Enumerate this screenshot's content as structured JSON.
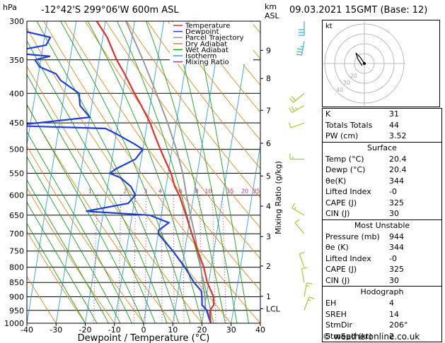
{
  "header": {
    "hpa_label": "hPa",
    "location": "-12°42'S  299°06'W  600m  ASL",
    "km_label": "km",
    "asl_label": "ASL",
    "datetime": "09.03.2021  15GMT  (Base: 12)"
  },
  "footer": {
    "credit": "© weatheronline.co.uk"
  },
  "legend": [
    {
      "label": "Temperature",
      "color": "#e0302a"
    },
    {
      "label": "Dewpoint",
      "color": "#1f3fd6"
    },
    {
      "label": "Parcel Trajectory",
      "color": "#999999"
    },
    {
      "label": "Dry Adiabat",
      "color": "#e08a1a"
    },
    {
      "label": "Wet Adiabat",
      "color": "#18a018"
    },
    {
      "label": "Isotherm",
      "color": "#2aa0e0"
    },
    {
      "label": "Mixing Ratio",
      "color": "#d0208a"
    }
  ],
  "colors": {
    "temperature": "#e0302a",
    "dewpoint": "#1f3fd6",
    "parcel": "#999999",
    "dry_adiabat": "#e08a1a",
    "wet_adiabat": "#18a018",
    "isotherm": "#2aa0e0",
    "mixing_ratio": "#d0208a",
    "wind_barb_upper": "#29b8c8",
    "wind_barb_lower": "#9ad030"
  },
  "chart_data": {
    "type": "line",
    "title": "",
    "xlabel": "Dewpoint / Temperature (°C)",
    "ylabel": "hPa",
    "secondary_ylabel": "Mixing Ratio (g/kg)",
    "xlim": [
      -40,
      40
    ],
    "ylim": [
      1000,
      300
    ],
    "x_ticks": [
      "-40",
      "-30",
      "-20",
      "-10",
      "0",
      "10",
      "20",
      "30",
      "40"
    ],
    "pressure_ticks": [
      "300",
      "350",
      "400",
      "450",
      "500",
      "550",
      "600",
      "650",
      "700",
      "750",
      "800",
      "850",
      "900",
      "950",
      "1000"
    ],
    "km_ticks": [
      {
        "label": "9",
        "p": 337
      },
      {
        "label": "8",
        "p": 377
      },
      {
        "label": "7",
        "p": 428
      },
      {
        "label": "6",
        "p": 488
      },
      {
        "label": "5",
        "p": 556
      },
      {
        "label": "4",
        "p": 627
      },
      {
        "label": "3",
        "p": 708
      },
      {
        "label": "2",
        "p": 796
      },
      {
        "label": "1",
        "p": 898
      },
      {
        "label": "LCL",
        "p": 944
      }
    ],
    "mixing_ratio_labels": [
      {
        "label": "1",
        "x": -25.5
      },
      {
        "label": "2",
        "x": -13.5
      },
      {
        "label": "3",
        "x": -6.5
      },
      {
        "label": "4",
        "x": -1.5
      },
      {
        "label": "6",
        "x": 5.5
      },
      {
        "label": "8",
        "x": 11.0
      },
      {
        "label": "10",
        "x": 15.0
      },
      {
        "label": "15",
        "x": 22.5
      },
      {
        "label": "20",
        "x": 27.5
      },
      {
        "label": "25",
        "x": 31.5
      }
    ],
    "series": [
      {
        "name": "Temperature",
        "points": [
          [
            1000,
            23
          ],
          [
            950,
            22
          ],
          [
            930,
            23
          ],
          [
            900,
            22.5
          ],
          [
            850,
            19.5
          ],
          [
            800,
            17.5
          ],
          [
            750,
            14.5
          ],
          [
            700,
            11.5
          ],
          [
            650,
            8.5
          ],
          [
            600,
            5
          ],
          [
            580,
            3
          ],
          [
            550,
            1
          ],
          [
            520,
            -2
          ],
          [
            500,
            -4
          ],
          [
            470,
            -7
          ],
          [
            450,
            -9
          ],
          [
            420,
            -13
          ],
          [
            400,
            -16
          ],
          [
            370,
            -20.5
          ],
          [
            350,
            -24
          ],
          [
            320,
            -28.5
          ],
          [
            300,
            -33
          ]
        ]
      },
      {
        "name": "Dewpoint",
        "points": [
          [
            1000,
            23
          ],
          [
            950,
            21
          ],
          [
            930,
            19
          ],
          [
            900,
            18.5
          ],
          [
            880,
            18
          ],
          [
            850,
            15
          ],
          [
            800,
            11
          ],
          [
            750,
            6
          ],
          [
            700,
            0
          ],
          [
            690,
            0
          ],
          [
            670,
            3
          ],
          [
            650,
            -4
          ],
          [
            640,
            -26
          ],
          [
            620,
            -12
          ],
          [
            600,
            -10
          ],
          [
            580,
            -12
          ],
          [
            560,
            -16
          ],
          [
            550,
            -20
          ],
          [
            540,
            -18
          ],
          [
            520,
            -12
          ],
          [
            500,
            -10
          ],
          [
            490,
            -13
          ],
          [
            470,
            -20
          ],
          [
            460,
            -24
          ],
          [
            455,
            -56
          ],
          [
            440,
            -30
          ],
          [
            420,
            -34
          ],
          [
            400,
            -35
          ],
          [
            380,
            -42
          ],
          [
            370,
            -44
          ],
          [
            360,
            -50
          ],
          [
            350,
            -52
          ],
          [
            345,
            -47
          ],
          [
            340,
            -62
          ],
          [
            330,
            -49
          ],
          [
            320,
            -48
          ],
          [
            310,
            -60
          ],
          [
            300,
            -62
          ]
        ]
      },
      {
        "name": "Parcel Trajectory",
        "points": [
          [
            1000,
            23
          ],
          [
            944,
            20.4
          ],
          [
            900,
            19.5
          ],
          [
            850,
            18
          ],
          [
            800,
            16.5
          ],
          [
            750,
            14.5
          ],
          [
            700,
            12.5
          ],
          [
            650,
            10
          ],
          [
            600,
            7.5
          ],
          [
            550,
            5
          ],
          [
            500,
            1.5
          ],
          [
            450,
            -3
          ],
          [
            400,
            -8.5
          ],
          [
            350,
            -15
          ],
          [
            300,
            -23
          ]
        ]
      }
    ],
    "wind_barbs": [
      {
        "p": 300,
        "dir": 180,
        "speed": 30
      },
      {
        "p": 325,
        "dir": 190,
        "speed": 25
      },
      {
        "p": 400,
        "dir": 230,
        "speed": 20
      },
      {
        "p": 420,
        "dir": 240,
        "speed": 15
      },
      {
        "p": 450,
        "dir": 250,
        "speed": 10
      },
      {
        "p": 520,
        "dir": 270,
        "speed": 5
      },
      {
        "p": 650,
        "dir": 300,
        "speed": 5
      },
      {
        "p": 700,
        "dir": 320,
        "speed": 10
      },
      {
        "p": 800,
        "dir": 340,
        "speed": 10
      },
      {
        "p": 850,
        "dir": 350,
        "speed": 10
      },
      {
        "p": 900,
        "dir": 10,
        "speed": 5
      },
      {
        "p": 950,
        "dir": 20,
        "speed": 5
      }
    ],
    "hodograph": {
      "unit_label": "kt",
      "ring_labels": [
        "40",
        "30",
        "20"
      ],
      "points": [
        [
          0,
          0
        ],
        [
          -2,
          3
        ],
        [
          -4,
          5
        ],
        [
          -3,
          2
        ],
        [
          -1,
          -1
        ]
      ],
      "storm_motion": {
        "dir": 206,
        "speed": 2
      }
    }
  },
  "indices": {
    "top": [
      {
        "label": "K",
        "value": "31"
      },
      {
        "label": "Totals Totals",
        "value": "44"
      },
      {
        "label": "PW (cm)",
        "value": "3.52"
      }
    ],
    "surface": {
      "title": "Surface",
      "rows": [
        {
          "label": "Temp (°C)",
          "value": "20.4"
        },
        {
          "label": "Dewp (°C)",
          "value": "20.4"
        },
        {
          "label": "θe(K)",
          "value": "344"
        },
        {
          "label": "Lifted Index",
          "value": "-0"
        },
        {
          "label": "CAPE (J)",
          "value": "325"
        },
        {
          "label": "CIN (J)",
          "value": "30"
        }
      ]
    },
    "most_unstable": {
      "title": "Most Unstable",
      "rows": [
        {
          "label": "Pressure (mb)",
          "value": "944"
        },
        {
          "label": "θe (K)",
          "value": "344"
        },
        {
          "label": "Lifted Index",
          "value": "-0"
        },
        {
          "label": "CAPE (J)",
          "value": "325"
        },
        {
          "label": "CIN (J)",
          "value": "30"
        }
      ]
    },
    "hodograph": {
      "title": "Hodograph",
      "rows": [
        {
          "label": "EH",
          "value": "4"
        },
        {
          "label": "SREH",
          "value": "14"
        },
        {
          "label": "StmDir",
          "value": "206°"
        },
        {
          "label": "StmSpd (kt)",
          "value": "2"
        }
      ]
    }
  }
}
